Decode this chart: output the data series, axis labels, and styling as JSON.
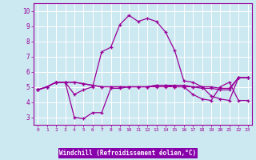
{
  "xlabel": "Windchill (Refroidissement éolien,°C)",
  "bg_color": "#cce8f0",
  "grid_color": "#ffffff",
  "line_color": "#990099",
  "xlabel_bg": "#8800aa",
  "xlabel_fg": "#ffffff",
  "x_ticks": [
    0,
    1,
    2,
    3,
    4,
    5,
    6,
    7,
    8,
    9,
    10,
    11,
    12,
    13,
    14,
    15,
    16,
    17,
    18,
    19,
    20,
    21,
    22,
    23
  ],
  "y_ticks": [
    3,
    4,
    5,
    6,
    7,
    8,
    9,
    10
  ],
  "ylim": [
    2.5,
    10.5
  ],
  "xlim": [
    -0.5,
    23.5
  ],
  "series": [
    [
      4.8,
      5.0,
      5.3,
      5.3,
      4.5,
      4.8,
      5.0,
      7.3,
      7.6,
      9.1,
      9.7,
      9.3,
      9.5,
      9.3,
      8.6,
      7.4,
      5.4,
      5.3,
      5.0,
      4.4,
      4.2,
      4.1,
      5.6,
      5.6
    ],
    [
      4.8,
      5.0,
      5.3,
      5.3,
      3.0,
      2.9,
      3.3,
      3.3,
      4.9,
      4.9,
      5.0,
      5.0,
      5.0,
      5.1,
      5.1,
      5.0,
      5.0,
      4.5,
      4.2,
      4.1,
      5.0,
      5.3,
      4.1,
      4.1
    ],
    [
      4.8,
      5.0,
      5.3,
      5.3,
      5.3,
      5.2,
      5.1,
      5.0,
      5.0,
      5.0,
      5.0,
      5.0,
      5.0,
      5.1,
      5.1,
      5.1,
      5.1,
      5.0,
      5.0,
      5.0,
      4.9,
      4.9,
      5.6,
      5.6
    ],
    [
      4.8,
      5.0,
      5.3,
      5.3,
      5.3,
      5.2,
      5.1,
      5.0,
      5.0,
      5.0,
      5.0,
      5.0,
      5.0,
      5.0,
      5.0,
      5.0,
      5.0,
      5.0,
      4.9,
      4.9,
      4.8,
      4.8,
      5.6,
      5.6
    ]
  ]
}
